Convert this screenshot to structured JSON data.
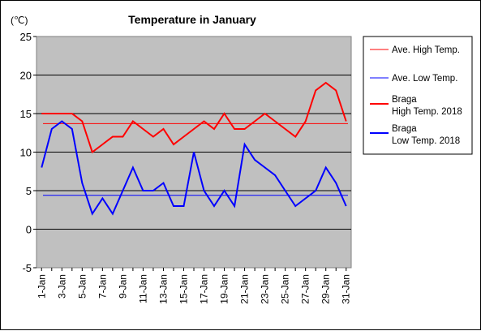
{
  "chart_data": {
    "type": "line",
    "title": "Temperature in January",
    "unit_label": "(℃)",
    "xlabel": "",
    "ylabel": "",
    "ylim": [
      -5,
      25
    ],
    "yticks": [
      -5,
      0,
      5,
      10,
      15,
      20,
      25
    ],
    "grid": true,
    "legend_position": "right",
    "x_tick_labels": [
      "1-Jan",
      "3-Jan",
      "5-Jan",
      "7-Jan",
      "9-Jan",
      "11-Jan",
      "13-Jan",
      "15-Jan",
      "17-Jan",
      "19-Jan",
      "21-Jan",
      "23-Jan",
      "25-Jan",
      "27-Jan",
      "29-Jan",
      "31-Jan"
    ],
    "x": [
      1,
      2,
      3,
      4,
      5,
      6,
      7,
      8,
      9,
      10,
      11,
      12,
      13,
      14,
      15,
      16,
      17,
      18,
      19,
      20,
      21,
      22,
      23,
      24,
      25,
      26,
      27,
      28,
      29,
      30,
      31
    ],
    "averages": [
      {
        "legend": "Ave. High Temp.",
        "value": 13.7,
        "color": "#ff0000"
      },
      {
        "legend": "Ave. Low Temp.",
        "value": 4.4,
        "color": "#0000ff"
      }
    ],
    "series": [
      {
        "legend": [
          "Braga",
          "High Temp. 2018"
        ],
        "color": "#ff0000",
        "values": [
          15,
          15,
          15,
          15,
          14,
          10,
          11,
          12,
          12,
          14,
          13,
          12,
          13,
          11,
          12,
          13,
          14,
          13,
          15,
          13,
          13,
          14,
          15,
          14,
          13,
          12,
          14,
          18,
          19,
          18,
          14
        ]
      },
      {
        "legend": [
          "Braga",
          "Low Temp. 2018"
        ],
        "color": "#0000ff",
        "values": [
          8,
          13,
          14,
          13,
          6,
          2,
          4,
          2,
          5,
          8,
          5,
          5,
          6,
          3,
          3,
          10,
          5,
          3,
          5,
          3,
          11,
          9,
          8,
          7,
          5,
          3,
          4,
          5,
          8,
          6,
          3
        ]
      }
    ]
  }
}
